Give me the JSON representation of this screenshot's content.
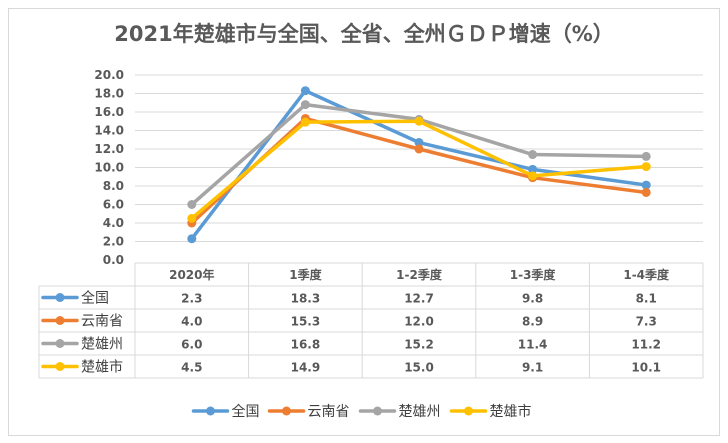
{
  "chart_data": {
    "type": "line",
    "title": "2021年楚雄市与全国、全省、全州ＧＤＰ增速（%）",
    "xlabel": "",
    "ylabel": "",
    "categories": [
      "2020年",
      "1季度",
      "1-2季度",
      "1-3季度",
      "1-4季度"
    ],
    "ylim": [
      0,
      20
    ],
    "yticks": [
      "0.0",
      "2.0",
      "4.0",
      "6.0",
      "8.0",
      "10.0",
      "12.0",
      "14.0",
      "16.0",
      "18.0",
      "20.0"
    ],
    "grid": true,
    "legend_position": "bottom",
    "data_table": true,
    "series": [
      {
        "name": "全国",
        "color": "#5b9bd5",
        "values": [
          2.3,
          18.3,
          12.7,
          9.8,
          8.1
        ],
        "labels": [
          "2.3",
          "18.3",
          "12.7",
          "9.8",
          "8.1"
        ]
      },
      {
        "name": "云南省",
        "color": "#ed7d31",
        "values": [
          4.0,
          15.3,
          12.0,
          8.9,
          7.3
        ],
        "labels": [
          "4.0",
          "15.3",
          "12.0",
          "8.9",
          "7.3"
        ]
      },
      {
        "name": "楚雄州",
        "color": "#a5a5a5",
        "values": [
          6.0,
          16.8,
          15.2,
          11.4,
          11.2
        ],
        "labels": [
          "6.0",
          "16.8",
          "15.2",
          "11.4",
          "11.2"
        ]
      },
      {
        "name": "楚雄市",
        "color": "#ffc000",
        "values": [
          4.5,
          14.9,
          15.0,
          9.1,
          10.1
        ],
        "labels": [
          "4.5",
          "14.9",
          "15.0",
          "9.1",
          "10.1"
        ]
      }
    ]
  }
}
